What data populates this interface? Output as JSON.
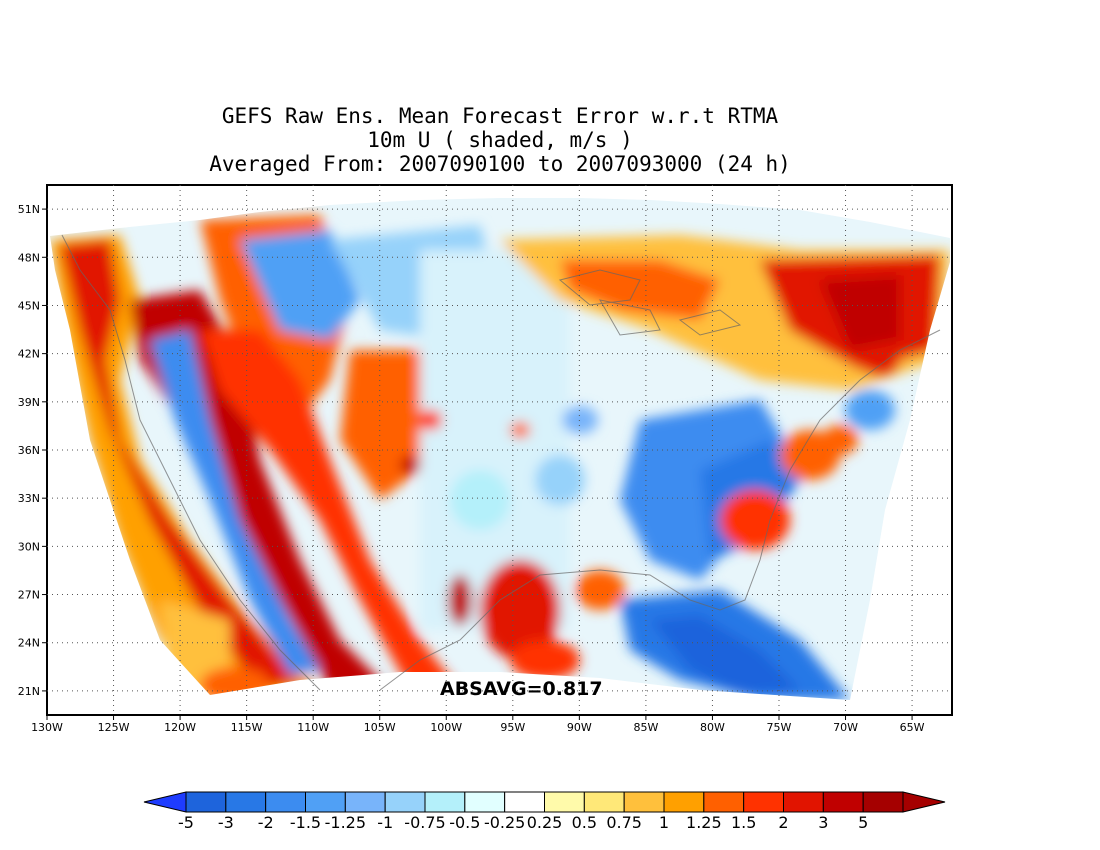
{
  "title": {
    "line1": "GEFS Raw Ens. Mean Forecast Error w.r.t RTMA",
    "line2": "10m U ( shaded, m/s )",
    "line3": "Averaged From: 2007090100 to 2007093000 (24 h)"
  },
  "map": {
    "lon_range": [
      -130,
      -62
    ],
    "lat_range": [
      19.5,
      52.5
    ],
    "lat_ticks": [
      "51N",
      "48N",
      "45N",
      "42N",
      "39N",
      "36N",
      "33N",
      "30N",
      "27N",
      "24N",
      "21N"
    ],
    "lat_values": [
      51,
      48,
      45,
      42,
      39,
      36,
      33,
      30,
      27,
      24,
      21
    ],
    "lon_ticks": [
      "130W",
      "125W",
      "120W",
      "115W",
      "110W",
      "105W",
      "100W",
      "95W",
      "90W",
      "85W",
      "80W",
      "75W",
      "70W",
      "65W"
    ],
    "lon_values": [
      -130,
      -125,
      -120,
      -115,
      -110,
      -105,
      -100,
      -95,
      -90,
      -85,
      -80,
      -75,
      -70,
      -65
    ],
    "gridlines": "dotted",
    "stat_text": "ABSAVG=0.817"
  },
  "colorbar": {
    "labels": [
      "-5",
      "-3",
      "-2",
      "-1.5",
      "-1.25",
      "-1",
      "-0.75",
      "-0.5",
      "-0.25",
      "0.25",
      "0.5",
      "0.75",
      "1",
      "1.25",
      "1.5",
      "2",
      "3",
      "5"
    ],
    "colors": [
      "#1e64dc",
      "#2878e6",
      "#3c8cf0",
      "#50a0f5",
      "#78b4fa",
      "#96d2fa",
      "#b4f0fa",
      "#e1ffff",
      "#ffffff",
      "#fffaaa",
      "#ffe878",
      "#ffc03c",
      "#ffa000",
      "#ff6000",
      "#ff3200",
      "#e11400",
      "#c00000",
      "#a50000"
    ],
    "left_arrow_color": "#1e3cff",
    "right_arrow_color": "#a50000"
  }
}
